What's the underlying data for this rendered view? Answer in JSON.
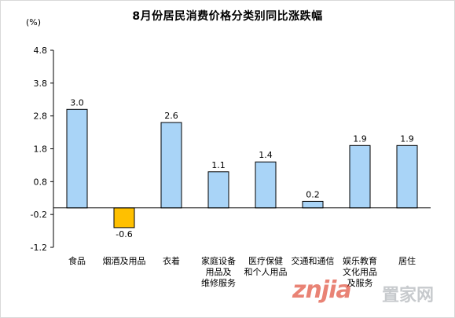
{
  "page": {
    "title": "8月份居民消费价格分类别同比涨跌幅",
    "unit": "(%)"
  },
  "chart_data": {
    "type": "bar",
    "title": "8月份居民消费价格分类别同比涨跌幅",
    "ylabel": "(%)",
    "xlabel": "",
    "ylim": [
      -1.2,
      4.8
    ],
    "y_ticks": [
      -1.2,
      -0.2,
      0.8,
      1.8,
      2.8,
      3.8,
      4.8
    ],
    "y_tick_labels": [
      "-1.2",
      "-0.2",
      "0.8",
      "1.8",
      "2.8",
      "3.8",
      "4.8"
    ],
    "categories": [
      [
        "食品"
      ],
      [
        "烟酒及用品"
      ],
      [
        "衣着"
      ],
      [
        "家庭设备",
        "用品及",
        "维修服务"
      ],
      [
        "医疗保健",
        "和个人用品"
      ],
      [
        "交通和通信"
      ],
      [
        "娱乐教育",
        "文化用品",
        "及服务"
      ],
      [
        "居住"
      ]
    ],
    "values": [
      3.0,
      -0.6,
      2.6,
      1.1,
      1.4,
      0.2,
      1.9,
      1.9
    ],
    "value_labels": [
      "3.0",
      "-0.6",
      "2.6",
      "1.1",
      "1.4",
      "0.2",
      "1.9",
      "1.9"
    ],
    "grid": false,
    "colors": {
      "positive_fill": "#a9d4f7",
      "negative_fill": "#ffc000",
      "bar_stroke": "#000000",
      "axis": "#000000"
    }
  },
  "watermark": {
    "logo": "znjia",
    "text": "置家网"
  }
}
